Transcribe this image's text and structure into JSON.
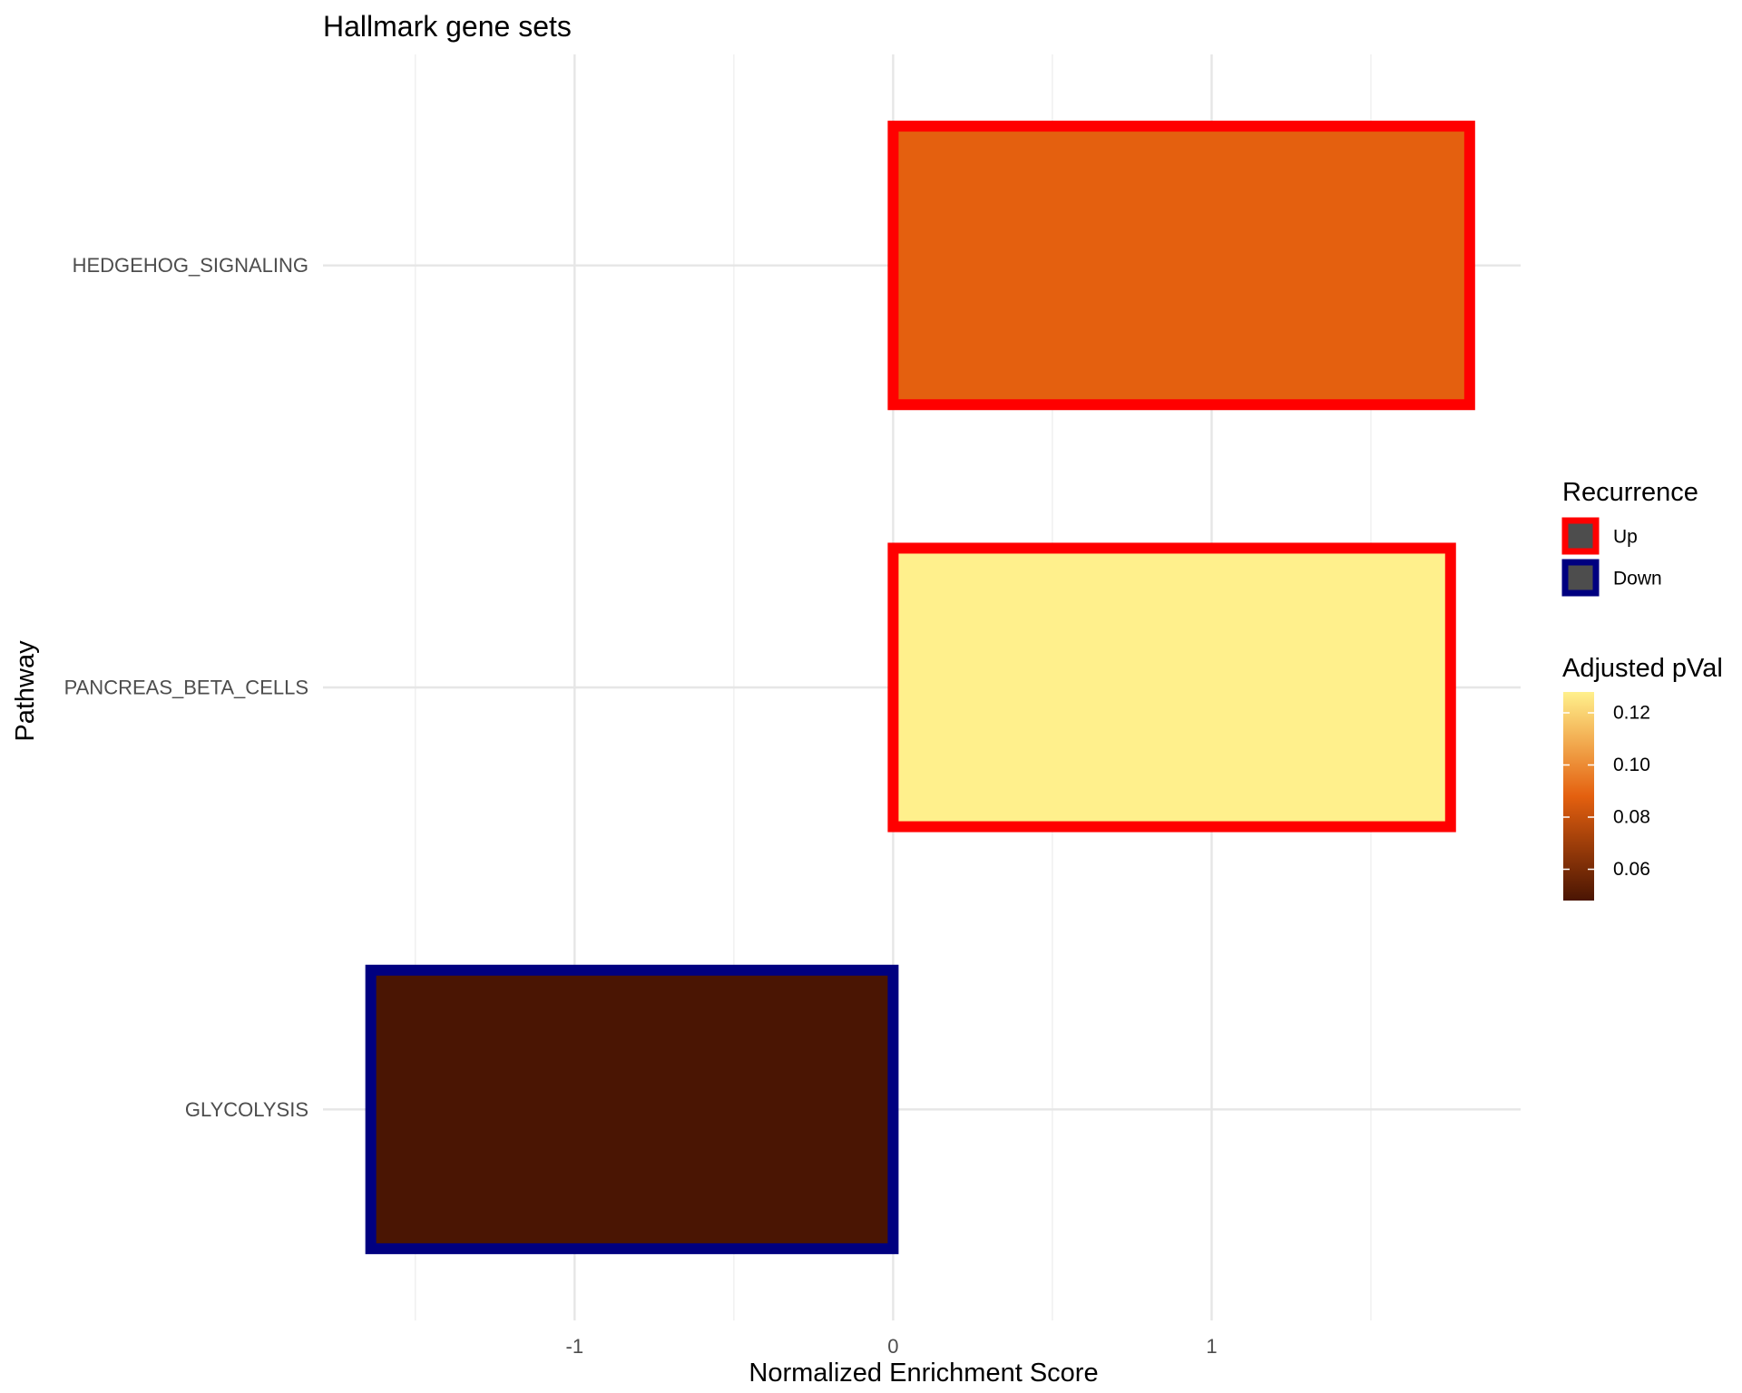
{
  "chart_data": {
    "type": "bar",
    "orientation": "horizontal",
    "title": "Hallmark gene sets",
    "xlabel": "Normalized Enrichment Score",
    "ylabel": "Pathway",
    "categories": [
      "HEDGEHOG_SIGNALING",
      "PANCREAS_BETA_CELLS",
      "GLYCOLYSIS"
    ],
    "values": [
      1.81,
      1.75,
      -1.64
    ],
    "padj": [
      0.088,
      0.128,
      0.048
    ],
    "recurrence": [
      "Up",
      "Up",
      "Down"
    ],
    "xlim": [
      -1.79,
      1.97
    ],
    "xticks": [
      -1,
      0,
      1
    ],
    "xtick_labels": [
      "-1",
      "0",
      "1"
    ],
    "grid": true,
    "legends": {
      "recurrence": {
        "title": "Recurrence",
        "entries": [
          {
            "label": "Up",
            "color": "#ff0000"
          },
          {
            "label": "Down",
            "color": "#000080"
          }
        ]
      },
      "padj": {
        "title": "Adjusted pVal",
        "range": [
          0.048,
          0.128
        ],
        "ticks": [
          0.06,
          0.08,
          0.1,
          0.12
        ],
        "tick_labels": [
          "0.06",
          "0.08",
          "0.10",
          "0.12"
        ],
        "colors": [
          "#4a1503",
          "#e4600f",
          "#fff08c"
        ]
      }
    },
    "legend_position": "right"
  }
}
